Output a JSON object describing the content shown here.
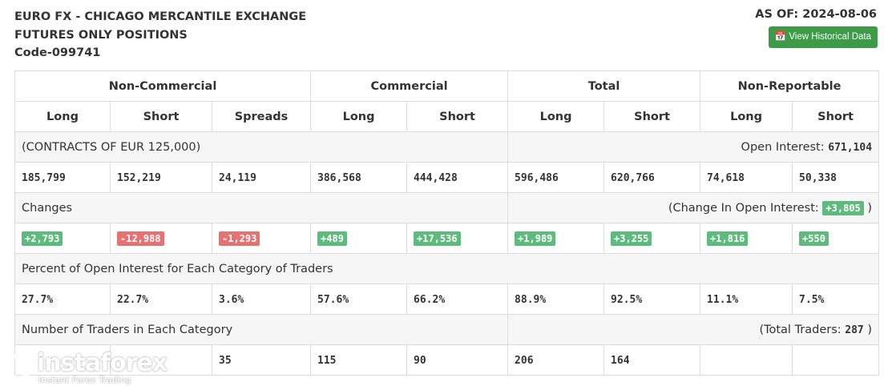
{
  "header": {
    "title_line1": "EURO FX - CHICAGO MERCANTILE EXCHANGE",
    "title_line2": "FUTURES ONLY POSITIONS",
    "code": "Code-099741",
    "as_of": "AS OF: 2024-08-06",
    "button": "View Historical Data"
  },
  "table": {
    "groups": [
      "Non-Commercial",
      "Commercial",
      "Total",
      "Non-Reportable"
    ],
    "columns": [
      "Long",
      "Short",
      "Spreads",
      "Long",
      "Short",
      "Long",
      "Short",
      "Long",
      "Short"
    ],
    "contracts_label": "(CONTRACTS OF EUR 125,000)",
    "open_interest_label": "Open Interest:",
    "open_interest_value": "671,104",
    "positions": [
      "185,799",
      "152,219",
      "24,119",
      "386,568",
      "444,428",
      "596,486",
      "620,766",
      "74,618",
      "50,338"
    ],
    "changes_label": "Changes",
    "change_oi_label": "(Change In Open Interest:",
    "change_oi_value": "+3,805",
    "change_oi_close": ")",
    "changes": [
      "+2,793",
      "-12,988",
      "-1,293",
      "+489",
      "+17,536",
      "+1,989",
      "+3,255",
      "+1,816",
      "+550"
    ],
    "percent_label": "Percent of Open Interest for Each Category of Traders",
    "percents": [
      "27.7%",
      "22.7%",
      "3.6%",
      "57.6%",
      "66.2%",
      "88.9%",
      "92.5%",
      "11.1%",
      "7.5%"
    ],
    "traders_label": "Number of Traders in Each Category",
    "total_traders_label": "(Total Traders:",
    "total_traders_value": "287",
    "total_traders_close": ")",
    "traders": [
      null,
      null,
      "35",
      "115",
      "90",
      "206",
      "164",
      null,
      null
    ]
  },
  "watermark": {
    "brand": "instaforex",
    "tagline": "Instant Forex Trading"
  }
}
